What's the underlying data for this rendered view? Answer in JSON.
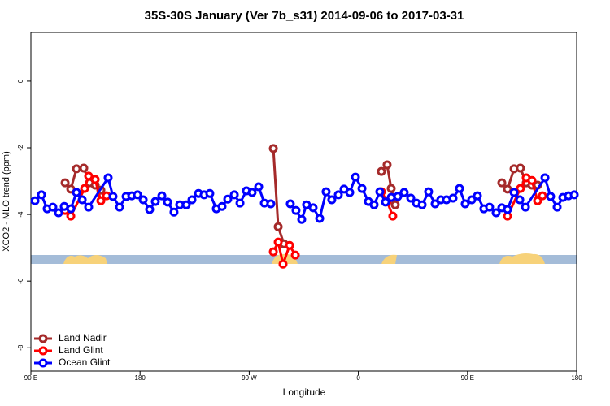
{
  "chart_data": {
    "type": "line",
    "title": "35S-30S January (Ver 7b_s31)   2014-09-06 to 2017-03-31",
    "x_label": "Longitude",
    "y_label": "XCO2 - MLO trend (ppm)",
    "xlim": [
      90,
      540
    ],
    "ylim": [
      -8.7,
      1.46
    ],
    "xticks": [
      {
        "value": 90,
        "label": "90 E"
      },
      {
        "value": 180,
        "label": "180"
      },
      {
        "value": 270,
        "label": "90 W"
      },
      {
        "value": 360,
        "label": "0"
      },
      {
        "value": 450,
        "label": "90 E"
      },
      {
        "value": 540,
        "label": "180"
      }
    ],
    "yticks": [
      0,
      -2,
      -4,
      -6,
      -8
    ],
    "legend": "bottom-left",
    "series": [
      {
        "name": "Land Nadir",
        "color": "#a52a2a",
        "x": [
          118.2,
          122.9,
          127.6,
          133.6,
          138.3,
          143.0,
          147.7,
          null,
          289.9,
          293.9,
          298.6,
          null,
          379.0,
          383.7,
          387.1,
          390.4,
          null,
          478.3,
          483.0,
          488.4,
          493.6,
          498.4,
          503.1,
          507.8
        ],
        "values": [
          -3.05,
          -3.24,
          -2.63,
          -2.61,
          -3.05,
          -3.12,
          -3.27,
          null,
          -2.02,
          -4.37,
          -4.88,
          null,
          -2.71,
          -2.51,
          -3.22,
          -3.71,
          null,
          -3.05,
          -3.24,
          -2.63,
          -2.61,
          -3.05,
          -3.12,
          -3.12
        ]
      },
      {
        "name": "Land Glint",
        "color": "#ff0000",
        "x": [
          118.2,
          122.9,
          134.3,
          137.6,
          143.0,
          147.7,
          152.4,
          null,
          289.9,
          293.9,
          297.9,
          303.3,
          308.0,
          null,
          379.0,
          383.7,
          388.4,
          null,
          483.0,
          493.6,
          498.4,
          503.1,
          507.8,
          511.8
        ],
        "values": [
          -3.88,
          -4.05,
          -3.22,
          -2.85,
          -2.95,
          -3.59,
          -3.44,
          null,
          -5.12,
          -4.83,
          -5.49,
          -4.93,
          -5.22,
          null,
          -3.32,
          -3.61,
          -4.05,
          null,
          -4.05,
          -3.22,
          -2.9,
          -2.98,
          -3.59,
          -3.44
        ]
      },
      {
        "name": "Ocean Glint",
        "color": "#0000ff",
        "x": [
          93.4,
          98.7,
          103.4,
          108.1,
          112.8,
          117.5,
          122.9,
          127.6,
          132.3,
          137.6,
          153.7,
          157.7,
          163.1,
          168.5,
          173.2,
          177.9,
          182.6,
          187.9,
          192.6,
          198.0,
          202.7,
          208.0,
          212.7,
          218.1,
          222.8,
          228.2,
          232.8,
          237.5,
          242.9,
          247.6,
          252.3,
          257.7,
          262.4,
          267.7,
          272.4,
          277.8,
          282.5,
          287.8,
          null,
          303.9,
          308.6,
          313.3,
          317.3,
          322.7,
          328.1,
          333.4,
          338.1,
          343.5,
          348.2,
          352.9,
          357.6,
          363.0,
          368.3,
          373.0,
          377.7,
          382.4,
          387.1,
          392.5,
          397.8,
          403.2,
          407.9,
          412.6,
          417.9,
          423.3,
          428.0,
          432.7,
          438.1,
          443.4,
          448.1,
          453.5,
          458.2,
          463.5,
          468.2,
          473.6,
          478.3,
          483.0,
          488.4,
          493.1,
          497.8,
          513.9,
          518.5,
          523.9,
          528.6,
          533.3,
          538.0
        ],
        "values": [
          -3.59,
          -3.41,
          -3.83,
          -3.78,
          -3.95,
          -3.76,
          -3.83,
          -3.34,
          -3.56,
          -3.78,
          -2.9,
          -3.46,
          -3.78,
          -3.46,
          -3.44,
          -3.41,
          -3.56,
          -3.85,
          -3.61,
          -3.44,
          -3.63,
          -3.93,
          -3.71,
          -3.71,
          -3.56,
          -3.37,
          -3.41,
          -3.37,
          -3.83,
          -3.76,
          -3.54,
          -3.41,
          -3.66,
          -3.29,
          -3.34,
          -3.17,
          -3.66,
          -3.68,
          null,
          -3.68,
          -3.88,
          -4.15,
          -3.71,
          -3.8,
          -4.12,
          -3.32,
          -3.56,
          -3.41,
          -3.24,
          -3.34,
          -2.88,
          -3.22,
          -3.61,
          -3.71,
          -3.32,
          -3.63,
          -3.49,
          -3.46,
          -3.34,
          -3.51,
          -3.66,
          -3.71,
          -3.32,
          -3.68,
          -3.56,
          -3.56,
          -3.51,
          -3.22,
          -3.68,
          -3.56,
          -3.44,
          -3.83,
          -3.78,
          -3.95,
          -3.8,
          -3.85,
          -3.34,
          -3.56,
          -3.78,
          -2.9,
          -3.46,
          -3.78,
          -3.49,
          -3.44,
          -3.41
        ]
      }
    ]
  }
}
